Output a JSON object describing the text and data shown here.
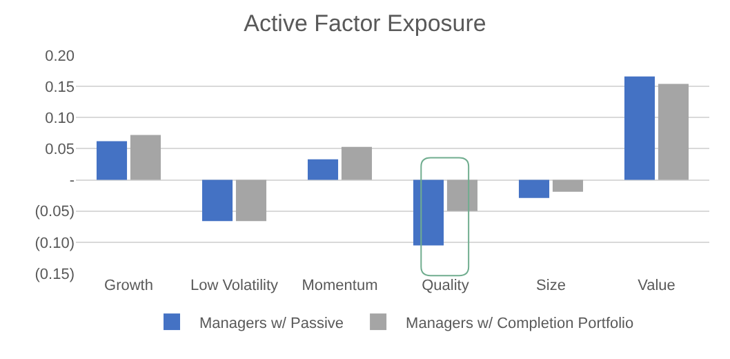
{
  "chart_data": {
    "type": "bar",
    "title": "Active Factor Exposure",
    "categories": [
      "Growth",
      "Low Volatility",
      "Momentum",
      "Quality",
      "Size",
      "Value"
    ],
    "series": [
      {
        "name": "Managers w/ Passive",
        "color": "#4472c4",
        "values": [
          0.062,
          -0.066,
          0.033,
          -0.105,
          -0.029,
          0.166
        ]
      },
      {
        "name": "Managers w/ Completion Portfolio",
        "color": "#a5a5a5",
        "values": [
          0.072,
          -0.066,
          0.053,
          -0.05,
          -0.019,
          0.154
        ]
      }
    ],
    "ylim": [
      -0.15,
      0.2
    ],
    "yticks": [
      {
        "value": -0.15,
        "label": "(0.15)"
      },
      {
        "value": -0.1,
        "label": "(0.10)"
      },
      {
        "value": -0.05,
        "label": "(0.05)"
      },
      {
        "value": 0,
        "label": "-"
      },
      {
        "value": 0.05,
        "label": "0.05"
      },
      {
        "value": 0.1,
        "label": "0.10"
      },
      {
        "value": 0.15,
        "label": "0.15"
      },
      {
        "value": 0.2,
        "label": "0.20"
      }
    ],
    "grid": "y",
    "legend": "bottom"
  }
}
